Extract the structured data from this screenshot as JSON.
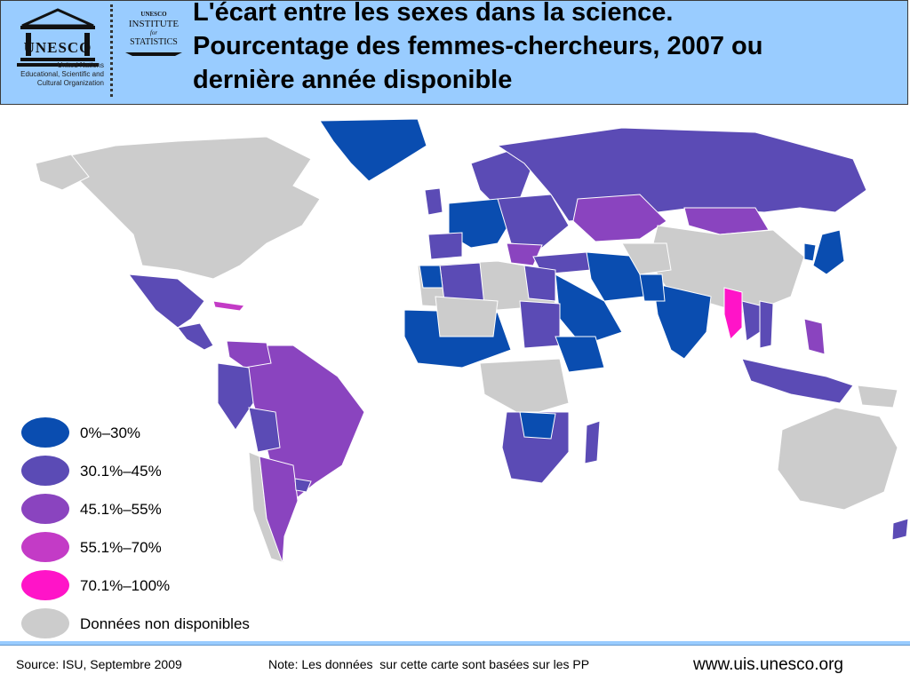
{
  "header": {
    "title_lines": [
      "L'écart entre les sexes dans la science.",
      "Pourcentage des femmes-chercheurs, 2007 ou",
      "dernière année disponible"
    ],
    "unesco_logo_text": "UNESCO",
    "unesco_caption_lines": [
      "United Nations",
      "Educational, Scientific and",
      "Cultural Organization"
    ],
    "uis_logo_lines": [
      "UNESCO",
      "INSTITUTE",
      "for",
      "STATISTICS"
    ],
    "background_color": "#99ccff"
  },
  "legend": {
    "items": [
      {
        "label": "0%–30%",
        "color": "#0a4db0"
      },
      {
        "label": "30.1%–45%",
        "color": "#5b4bb5"
      },
      {
        "label": "45.1%–55%",
        "color": "#8a44bf"
      },
      {
        "label": "55.1%–70%",
        "color": "#c33bc6"
      },
      {
        "label": "70.1%–100%",
        "color": "#ff14c8"
      },
      {
        "label": "Données non disponibles",
        "color": "#cccccc"
      }
    ]
  },
  "footer": {
    "source": "Source: ISU, Septembre 2009",
    "note": "Note: Les données  sur cette carte sont basées sur les PP",
    "url": "www.uis.unesco.org"
  }
}
